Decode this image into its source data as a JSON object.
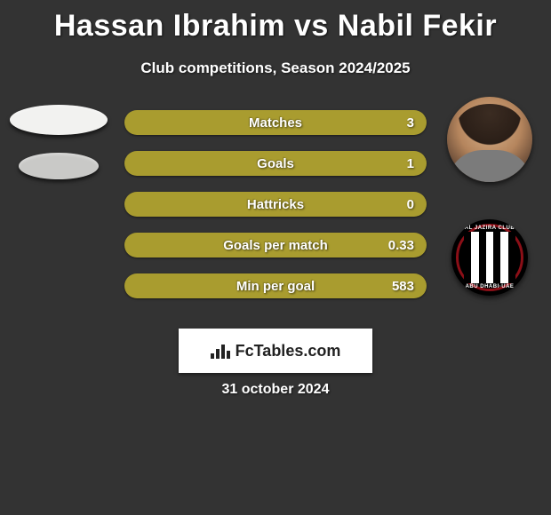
{
  "title": "Hassan Ibrahim vs Nabil Fekir",
  "subtitle": "Club competitions, Season 2024/2025",
  "date_text": "31 october 2024",
  "brand_label": "FcTables.com",
  "colors": {
    "bar_fill": "#a99c2f",
    "bar_full_fill": "#a99c2f",
    "oval_light": "#f2f2f0",
    "oval_dark": "#c9c9c7",
    "club_ring": "#8b0f17"
  },
  "left_ovals": [
    {
      "shade": "light"
    },
    {
      "shade": "dark"
    }
  ],
  "stats": [
    {
      "label": "Matches",
      "value_right": "3",
      "fill_pct": 100
    },
    {
      "label": "Goals",
      "value_right": "1",
      "fill_pct": 100
    },
    {
      "label": "Hattricks",
      "value_right": "0",
      "fill_pct": 100
    },
    {
      "label": "Goals per match",
      "value_right": "0.33",
      "fill_pct": 100
    },
    {
      "label": "Min per goal",
      "value_right": "583",
      "fill_pct": 100
    }
  ],
  "right_player": {
    "name": "Nabil Fekir"
  },
  "right_club": {
    "name": "Al Jazira Club",
    "city": "Abu Dhabi - UAE"
  },
  "club_badge_text_top": "AL JAZIRA CLUB",
  "club_badge_text_bot": "ABU DHABI·UAE",
  "club_stripes": [
    "#000",
    "#fff",
    "#000",
    "#fff",
    "#000",
    "#fff",
    "#000"
  ]
}
